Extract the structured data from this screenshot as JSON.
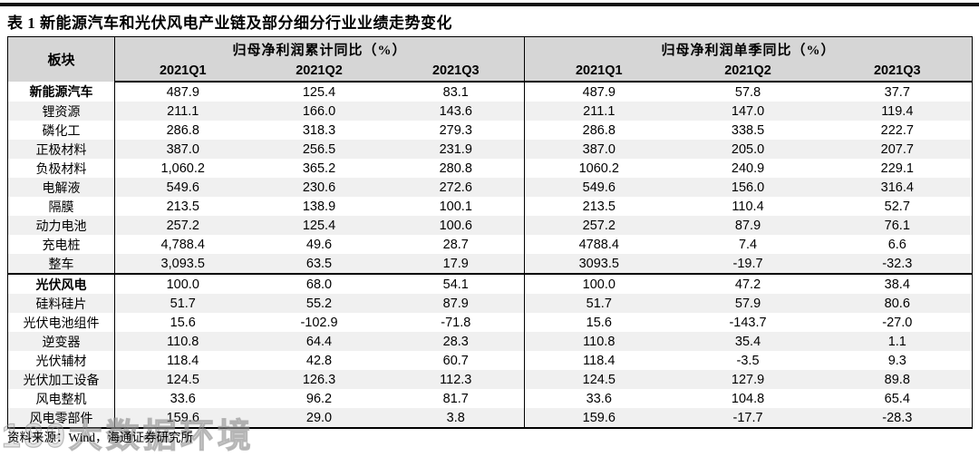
{
  "page": {
    "title": "表 1 新能源汽车和光伏风电产业链及部分细分行业业绩走势变化",
    "source_note": "资料来源：Wind，海通证券研究所",
    "watermark_text": "189大数据环境"
  },
  "table": {
    "sector_column_header": "板块",
    "column_groups": [
      {
        "label": "归母净利润累计同比（%）",
        "columns": [
          "2021Q1",
          "2021Q2",
          "2021Q3"
        ]
      },
      {
        "label": "归母净利润单季同比（%）",
        "columns": [
          "2021Q1",
          "2021Q2",
          "2021Q3"
        ]
      }
    ],
    "rows": [
      {
        "sector": "新能源汽车",
        "is_section_header": true,
        "cumulative": [
          "487.9",
          "125.4",
          "83.1"
        ],
        "quarterly": [
          "487.9",
          "57.8",
          "37.7"
        ]
      },
      {
        "sector": "锂资源",
        "is_section_header": false,
        "cumulative": [
          "211.1",
          "166.0",
          "143.6"
        ],
        "quarterly": [
          "211.1",
          "147.0",
          "119.4"
        ]
      },
      {
        "sector": "磷化工",
        "is_section_header": false,
        "cumulative": [
          "286.8",
          "318.3",
          "279.3"
        ],
        "quarterly": [
          "286.8",
          "338.5",
          "222.7"
        ]
      },
      {
        "sector": "正极材料",
        "is_section_header": false,
        "cumulative": [
          "387.0",
          "256.5",
          "231.9"
        ],
        "quarterly": [
          "387.0",
          "205.0",
          "207.7"
        ]
      },
      {
        "sector": "负极材料",
        "is_section_header": false,
        "cumulative": [
          "1,060.2",
          "365.2",
          "280.8"
        ],
        "quarterly": [
          "1060.2",
          "240.9",
          "229.1"
        ]
      },
      {
        "sector": "电解液",
        "is_section_header": false,
        "cumulative": [
          "549.6",
          "230.6",
          "272.6"
        ],
        "quarterly": [
          "549.6",
          "156.0",
          "316.4"
        ]
      },
      {
        "sector": "隔膜",
        "is_section_header": false,
        "cumulative": [
          "213.5",
          "138.9",
          "100.1"
        ],
        "quarterly": [
          "213.5",
          "110.4",
          "52.7"
        ]
      },
      {
        "sector": "动力电池",
        "is_section_header": false,
        "cumulative": [
          "257.2",
          "125.4",
          "100.6"
        ],
        "quarterly": [
          "257.2",
          "87.9",
          "76.1"
        ]
      },
      {
        "sector": "充电桩",
        "is_section_header": false,
        "cumulative": [
          "4,788.4",
          "49.6",
          "28.7"
        ],
        "quarterly": [
          "4788.4",
          "7.4",
          "6.6"
        ]
      },
      {
        "sector": "整车",
        "is_section_header": false,
        "cumulative": [
          "3,093.5",
          "63.5",
          "17.9"
        ],
        "quarterly": [
          "3093.5",
          "-19.7",
          "-32.3"
        ]
      },
      {
        "sector": "光伏风电",
        "is_section_header": true,
        "cumulative": [
          "100.0",
          "68.0",
          "54.1"
        ],
        "quarterly": [
          "100.0",
          "47.2",
          "38.4"
        ]
      },
      {
        "sector": "硅料硅片",
        "is_section_header": false,
        "cumulative": [
          "51.7",
          "55.2",
          "87.9"
        ],
        "quarterly": [
          "51.7",
          "57.9",
          "80.6"
        ]
      },
      {
        "sector": "光伏电池组件",
        "is_section_header": false,
        "cumulative": [
          "15.6",
          "-102.9",
          "-71.8"
        ],
        "quarterly": [
          "15.6",
          "-143.7",
          "-27.0"
        ]
      },
      {
        "sector": "逆变器",
        "is_section_header": false,
        "cumulative": [
          "110.8",
          "64.4",
          "28.3"
        ],
        "quarterly": [
          "110.8",
          "35.4",
          "1.1"
        ]
      },
      {
        "sector": "光伏辅材",
        "is_section_header": false,
        "cumulative": [
          "118.4",
          "42.8",
          "60.7"
        ],
        "quarterly": [
          "118.4",
          "-3.5",
          "9.3"
        ]
      },
      {
        "sector": "光伏加工设备",
        "is_section_header": false,
        "cumulative": [
          "124.5",
          "126.3",
          "112.3"
        ],
        "quarterly": [
          "124.5",
          "127.9",
          "89.8"
        ]
      },
      {
        "sector": "风电整机",
        "is_section_header": false,
        "cumulative": [
          "33.6",
          "96.2",
          "81.7"
        ],
        "quarterly": [
          "33.6",
          "104.8",
          "65.4"
        ]
      },
      {
        "sector": "风电零部件",
        "is_section_header": false,
        "cumulative": [
          "159.6",
          "29.0",
          "3.8"
        ],
        "quarterly": [
          "159.6",
          "-17.7",
          "-28.3"
        ]
      }
    ]
  },
  "colors": {
    "header_bg": "#d6d6d6",
    "row_alt_bg": "#f0f0f0",
    "border": "#000000",
    "text": "#000000"
  }
}
